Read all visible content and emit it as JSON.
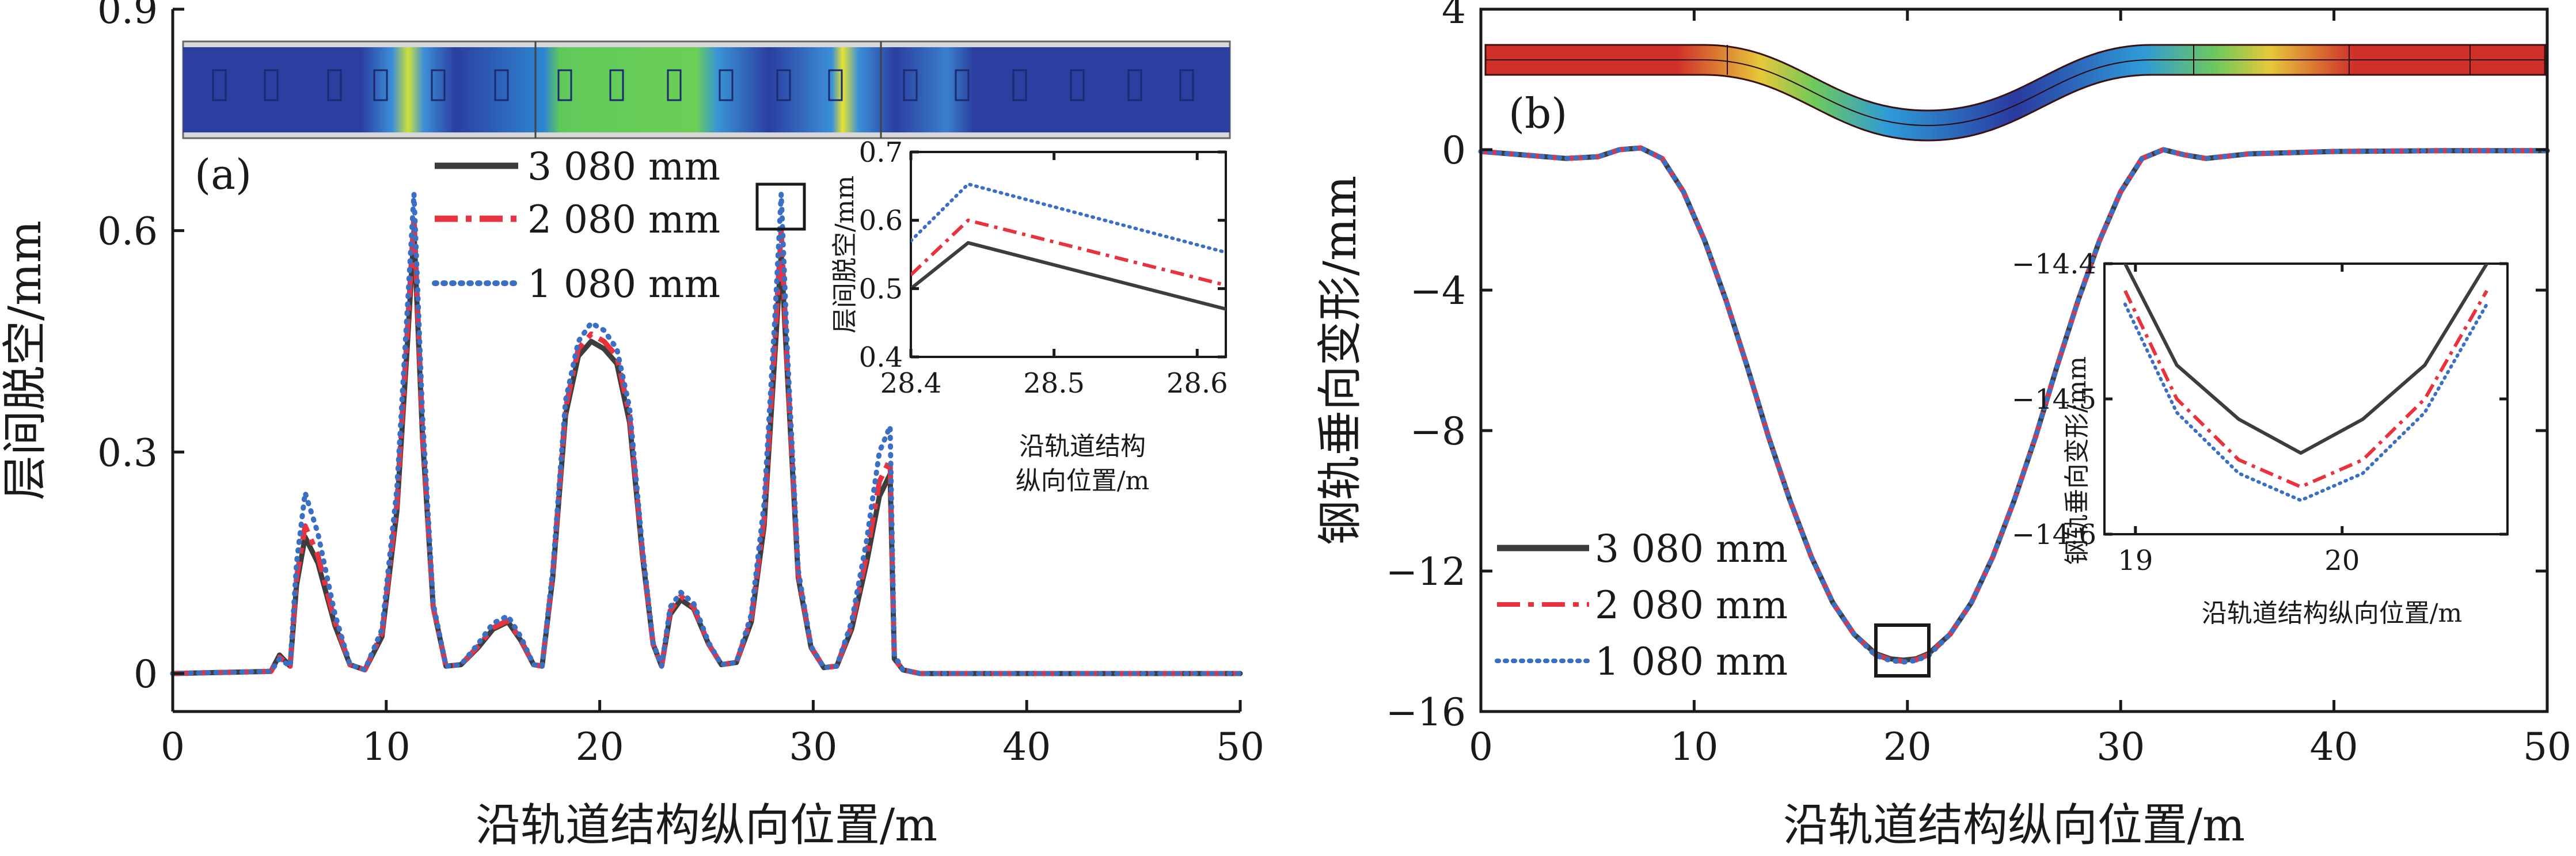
{
  "figure": {
    "panels": [
      {
        "id": "a",
        "label": "(a)"
      },
      {
        "id": "b",
        "label": "(b)"
      }
    ]
  },
  "colors": {
    "s3080": "#3d3d3d",
    "s2080": "#e8333f",
    "s1080": "#3a6fc4",
    "axis": "#1a1a1a"
  },
  "chart_data": [
    {
      "id": "a",
      "type": "line",
      "title": "",
      "panel_label": "(a)",
      "xlabel": "沿轨道结构纵向位置/m",
      "ylabel": "层间脱空/mm",
      "xlim": [
        0,
        50
      ],
      "ylim": [
        0,
        0.9
      ],
      "xticks": [
        0,
        10,
        20,
        30,
        40,
        50
      ],
      "yticks": [
        0,
        0.3,
        0.6,
        0.9
      ],
      "yticklabels": [
        "0",
        "0.3",
        "0.6",
        "0.9"
      ],
      "legend_position": "top-center",
      "series": [
        {
          "name": "3 080 mm",
          "style": "solid",
          "color": "#3d3d3d",
          "x": [
            0,
            4.6,
            5.0,
            5.5,
            5.8,
            6.2,
            6.8,
            7.6,
            8.3,
            9.0,
            9.8,
            10.5,
            11.0,
            11.3,
            11.7,
            12.2,
            12.8,
            13.5,
            14.3,
            15.0,
            15.7,
            16.3,
            16.9,
            17.3,
            17.8,
            18.4,
            19.0,
            19.6,
            20.2,
            20.8,
            21.4,
            22.0,
            22.5,
            22.9,
            23.3,
            23.8,
            24.4,
            25.1,
            25.7,
            26.4,
            27.1,
            27.7,
            28.2,
            28.5,
            28.8,
            29.3,
            29.9,
            30.5,
            31.1,
            31.8,
            32.5,
            33.1,
            33.6,
            33.8,
            34.2,
            35,
            40,
            45,
            50
          ],
          "values": [
            0.0,
            0.003,
            0.025,
            0.01,
            0.12,
            0.185,
            0.15,
            0.065,
            0.012,
            0.005,
            0.05,
            0.22,
            0.45,
            0.6,
            0.32,
            0.09,
            0.01,
            0.012,
            0.035,
            0.06,
            0.07,
            0.045,
            0.012,
            0.01,
            0.13,
            0.35,
            0.43,
            0.45,
            0.44,
            0.42,
            0.34,
            0.16,
            0.04,
            0.01,
            0.08,
            0.1,
            0.088,
            0.04,
            0.012,
            0.015,
            0.07,
            0.2,
            0.43,
            0.57,
            0.4,
            0.13,
            0.035,
            0.008,
            0.01,
            0.06,
            0.15,
            0.24,
            0.27,
            0.02,
            0.005,
            0.0,
            0.0,
            0.0,
            0.0
          ]
        },
        {
          "name": "2 080 mm",
          "style": "dashdot",
          "color": "#e8333f",
          "x": [
            0,
            4.6,
            5.0,
            5.5,
            5.8,
            6.2,
            6.8,
            7.6,
            8.3,
            9.0,
            9.8,
            10.5,
            11.0,
            11.3,
            11.7,
            12.2,
            12.8,
            13.5,
            14.3,
            15.0,
            15.7,
            16.3,
            16.9,
            17.3,
            17.8,
            18.4,
            19.0,
            19.6,
            20.2,
            20.8,
            21.4,
            22.0,
            22.5,
            22.9,
            23.3,
            23.8,
            24.4,
            25.1,
            25.7,
            26.4,
            27.1,
            27.7,
            28.2,
            28.5,
            28.8,
            29.3,
            29.9,
            30.5,
            31.1,
            31.8,
            32.5,
            33.1,
            33.6,
            33.8,
            34.2,
            35,
            40,
            45,
            50
          ],
          "values": [
            0.0,
            0.003,
            0.022,
            0.01,
            0.13,
            0.2,
            0.16,
            0.07,
            0.012,
            0.005,
            0.055,
            0.23,
            0.47,
            0.62,
            0.33,
            0.09,
            0.01,
            0.012,
            0.037,
            0.062,
            0.072,
            0.046,
            0.012,
            0.01,
            0.135,
            0.36,
            0.44,
            0.46,
            0.45,
            0.43,
            0.35,
            0.165,
            0.04,
            0.01,
            0.085,
            0.105,
            0.09,
            0.04,
            0.012,
            0.015,
            0.075,
            0.21,
            0.45,
            0.6,
            0.41,
            0.135,
            0.036,
            0.008,
            0.01,
            0.065,
            0.16,
            0.26,
            0.29,
            0.02,
            0.005,
            0.0,
            0.0,
            0.0,
            0.0
          ]
        },
        {
          "name": "1 080 mm",
          "style": "dotted",
          "color": "#3a6fc4",
          "x": [
            0,
            4.6,
            5.0,
            5.5,
            5.8,
            6.2,
            6.8,
            7.6,
            8.3,
            9.0,
            9.8,
            10.5,
            11.0,
            11.3,
            11.7,
            12.2,
            12.8,
            13.5,
            14.3,
            15.0,
            15.7,
            16.3,
            16.9,
            17.3,
            17.8,
            18.4,
            19.0,
            19.6,
            20.2,
            20.8,
            21.4,
            22.0,
            22.5,
            22.9,
            23.3,
            23.8,
            24.4,
            25.1,
            25.7,
            26.4,
            27.1,
            27.7,
            28.2,
            28.5,
            28.8,
            29.3,
            29.9,
            30.5,
            31.1,
            31.8,
            32.5,
            33.1,
            33.6,
            33.8,
            34.2,
            35,
            40,
            45,
            50
          ],
          "values": [
            0.0,
            0.003,
            0.02,
            0.01,
            0.15,
            0.245,
            0.19,
            0.08,
            0.012,
            0.005,
            0.06,
            0.25,
            0.5,
            0.65,
            0.35,
            0.095,
            0.01,
            0.012,
            0.04,
            0.068,
            0.078,
            0.05,
            0.012,
            0.01,
            0.14,
            0.37,
            0.45,
            0.475,
            0.465,
            0.44,
            0.36,
            0.17,
            0.042,
            0.01,
            0.09,
            0.11,
            0.095,
            0.042,
            0.012,
            0.015,
            0.08,
            0.23,
            0.48,
            0.65,
            0.43,
            0.14,
            0.037,
            0.008,
            0.01,
            0.07,
            0.18,
            0.3,
            0.335,
            0.025,
            0.005,
            0.0,
            0.0,
            0.0,
            0.0
          ]
        }
      ],
      "inset": {
        "xlabel_line1": "沿轨道结构",
        "xlabel_line2": "纵向位置/m",
        "ylabel": "层间脱空/mm",
        "xlim": [
          28.4,
          28.62
        ],
        "ylim": [
          0.4,
          0.7
        ],
        "xticks": [
          28.4,
          28.5,
          28.6
        ],
        "yticks": [
          0.4,
          0.5,
          0.6,
          0.7
        ],
        "series": [
          {
            "name": "3 080 mm",
            "x": [
              28.4,
              28.44,
              28.62
            ],
            "values": [
              0.5,
              0.567,
              0.47
            ]
          },
          {
            "name": "2 080 mm",
            "x": [
              28.4,
              28.44,
              28.62
            ],
            "values": [
              0.52,
              0.6,
              0.505
            ]
          },
          {
            "name": "1 080 mm",
            "x": [
              28.4,
              28.44,
              28.62
            ],
            "values": [
              0.57,
              0.653,
              0.553
            ]
          }
        ]
      }
    },
    {
      "id": "b",
      "type": "line",
      "title": "",
      "panel_label": "(b)",
      "xlabel": "沿轨道结构纵向位置/m",
      "ylabel": "钢轨垂向变形/mm",
      "xlim": [
        0,
        50
      ],
      "ylim": [
        -16,
        4
      ],
      "xticks": [
        0,
        10,
        20,
        30,
        40,
        50
      ],
      "yticks": [
        -16,
        -12,
        -8,
        -4,
        0,
        4
      ],
      "yticklabels": [
        "−16",
        "−12",
        "−8",
        "−4",
        "0",
        "4"
      ],
      "legend_position": "bottom-left",
      "series": [
        {
          "name": "3 080 mm",
          "style": "solid",
          "color": "#3d3d3d",
          "x": [
            0,
            2,
            4,
            5.5,
            6.5,
            7.5,
            8.5,
            9.5,
            10.5,
            11.5,
            12.5,
            13.5,
            14.5,
            15.5,
            16.5,
            17.5,
            18.5,
            19.2,
            19.8,
            20.4,
            21,
            22,
            23,
            24,
            25,
            26,
            27,
            28,
            29,
            30,
            31,
            32,
            33,
            34,
            36,
            40,
            45,
            50
          ],
          "values": [
            -0.05,
            -0.15,
            -0.25,
            -0.2,
            0.0,
            0.05,
            -0.25,
            -1.2,
            -2.6,
            -4.3,
            -6.2,
            -8.2,
            -10.0,
            -11.6,
            -12.9,
            -13.8,
            -14.35,
            -14.5,
            -14.54,
            -14.5,
            -14.35,
            -13.8,
            -12.9,
            -11.6,
            -10.0,
            -8.2,
            -6.2,
            -4.3,
            -2.6,
            -1.2,
            -0.25,
            0.0,
            -0.15,
            -0.25,
            -0.12,
            -0.05,
            -0.03,
            -0.03
          ]
        },
        {
          "name": "2 080 mm",
          "style": "dashdot",
          "color": "#e8333f",
          "x": [
            0,
            2,
            4,
            5.5,
            6.5,
            7.5,
            8.5,
            9.5,
            10.5,
            11.5,
            12.5,
            13.5,
            14.5,
            15.5,
            16.5,
            17.5,
            18.5,
            19.2,
            19.8,
            20.4,
            21,
            22,
            23,
            24,
            25,
            26,
            27,
            28,
            29,
            30,
            31,
            32,
            33,
            34,
            36,
            40,
            45,
            50
          ],
          "values": [
            -0.05,
            -0.15,
            -0.25,
            -0.2,
            0.0,
            0.05,
            -0.25,
            -1.2,
            -2.6,
            -4.3,
            -6.2,
            -8.2,
            -10.0,
            -11.6,
            -12.9,
            -13.8,
            -14.38,
            -14.53,
            -14.57,
            -14.53,
            -14.38,
            -13.8,
            -12.9,
            -11.6,
            -10.0,
            -8.2,
            -6.2,
            -4.3,
            -2.6,
            -1.2,
            -0.25,
            0.0,
            -0.15,
            -0.25,
            -0.12,
            -0.05,
            -0.03,
            -0.03
          ]
        },
        {
          "name": "1 080 mm",
          "style": "dotted",
          "color": "#3a6fc4",
          "x": [
            0,
            2,
            4,
            5.5,
            6.5,
            7.5,
            8.5,
            9.5,
            10.5,
            11.5,
            12.5,
            13.5,
            14.5,
            15.5,
            16.5,
            17.5,
            18.5,
            19.2,
            19.8,
            20.4,
            21,
            22,
            23,
            24,
            25,
            26,
            27,
            28,
            29,
            30,
            31,
            32,
            33,
            34,
            36,
            40,
            45,
            50
          ],
          "values": [
            -0.05,
            -0.15,
            -0.25,
            -0.2,
            0.0,
            0.05,
            -0.25,
            -1.2,
            -2.6,
            -4.3,
            -6.2,
            -8.2,
            -10.0,
            -11.6,
            -12.9,
            -13.8,
            -14.4,
            -14.55,
            -14.59,
            -14.55,
            -14.4,
            -13.8,
            -12.9,
            -11.6,
            -10.0,
            -8.2,
            -6.2,
            -4.3,
            -2.6,
            -1.2,
            -0.25,
            0.0,
            -0.15,
            -0.25,
            -0.12,
            -0.05,
            -0.03,
            -0.03
          ]
        }
      ],
      "inset": {
        "xlabel": "沿轨道结构纵向位置/m",
        "ylabel": "钢轨垂向变形/mm",
        "xlim": [
          18.85,
          20.8
        ],
        "ylim": [
          -14.6,
          -14.4
        ],
        "xticks": [
          19,
          20
        ],
        "yticks": [
          -14.6,
          -14.5,
          -14.4
        ],
        "yticklabels": [
          "−14.6",
          "−14.5",
          "−14.4"
        ],
        "series": [
          {
            "name": "3 080 mm",
            "x": [
              18.95,
              19.2,
              19.5,
              19.8,
              20.1,
              20.4,
              20.7
            ],
            "values": [
              -14.4,
              -14.475,
              -14.515,
              -14.54,
              -14.515,
              -14.475,
              -14.4
            ]
          },
          {
            "name": "2 080 mm",
            "x": [
              18.95,
              19.2,
              19.5,
              19.8,
              20.1,
              20.4,
              20.7
            ],
            "values": [
              -14.42,
              -14.5,
              -14.545,
              -14.565,
              -14.545,
              -14.5,
              -14.42
            ]
          },
          {
            "name": "1 080 mm",
            "x": [
              18.95,
              19.2,
              19.5,
              19.8,
              20.1,
              20.4,
              20.7
            ],
            "values": [
              -14.43,
              -14.51,
              -14.555,
              -14.575,
              -14.555,
              -14.51,
              -14.43
            ]
          }
        ]
      }
    }
  ]
}
